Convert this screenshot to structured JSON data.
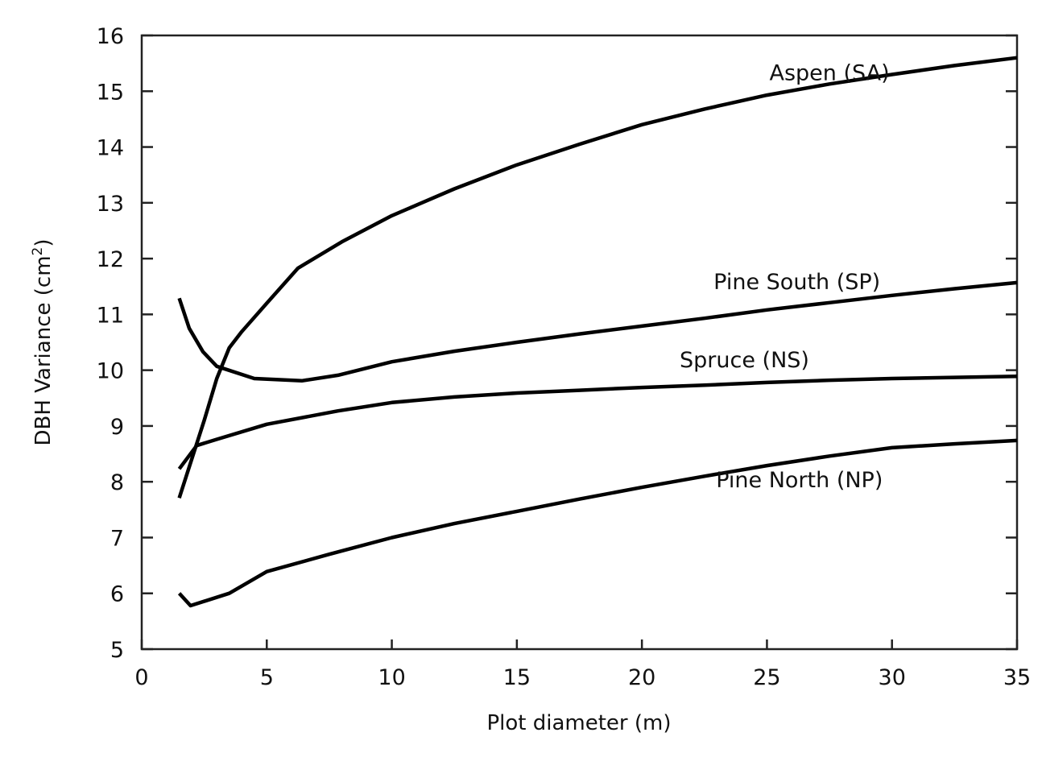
{
  "chart_data": {
    "type": "line",
    "title": "",
    "xlabel": "Plot diameter (m)",
    "ylabel": "DBH Variance (cm",
    "ylabel_superscript": "2",
    "ylabel_suffix": ")",
    "xlim": [
      0,
      35
    ],
    "ylim": [
      5,
      16
    ],
    "xticks": [
      "0",
      "5",
      "10",
      "15",
      "20",
      "25",
      "30",
      "35"
    ],
    "yticks": [
      "5",
      "6",
      "7",
      "8",
      "9",
      "10",
      "11",
      "12",
      "13",
      "14",
      "15",
      "16"
    ],
    "grid": false,
    "legend": "inline labels",
    "line_color": "#000000",
    "series": [
      {
        "name": "Aspen (SA)",
        "label_at": [
          27.5,
          15.2
        ],
        "x": [
          1.5,
          2.5,
          3.0,
          3.5,
          4.0,
          5.0,
          6.25,
          8.0,
          10.0,
          12.5,
          15.0,
          17.5,
          20.0,
          22.5,
          25.0,
          27.5,
          30.0,
          32.5,
          35.0
        ],
        "y": [
          7.71,
          9.1,
          9.85,
          10.4,
          10.69,
          11.2,
          11.83,
          12.3,
          12.77,
          13.25,
          13.68,
          14.05,
          14.4,
          14.68,
          14.93,
          15.13,
          15.3,
          15.46,
          15.6
        ]
      },
      {
        "name": "Pine South (SP)",
        "label_at": [
          26.2,
          11.45
        ],
        "x": [
          1.5,
          1.9,
          2.45,
          3.0,
          4.5,
          6.4,
          7.85,
          10.0,
          12.5,
          15.0,
          17.5,
          20.0,
          22.5,
          25.0,
          27.5,
          30.0,
          32.5,
          35.0
        ],
        "y": [
          11.29,
          10.75,
          10.33,
          10.07,
          9.85,
          9.81,
          9.91,
          10.15,
          10.34,
          10.5,
          10.65,
          10.79,
          10.93,
          11.08,
          11.21,
          11.34,
          11.46,
          11.57
        ]
      },
      {
        "name": "Spruce (NS)",
        "label_at": [
          24.1,
          10.05
        ],
        "x": [
          1.5,
          2.2,
          3.0,
          5.0,
          7.85,
          10.0,
          12.5,
          15.0,
          17.5,
          20.0,
          22.5,
          25.0,
          27.5,
          30.0,
          32.5,
          35.0
        ],
        "y": [
          8.23,
          8.65,
          8.76,
          9.03,
          9.27,
          9.42,
          9.52,
          9.59,
          9.64,
          9.69,
          9.73,
          9.78,
          9.82,
          9.85,
          9.87,
          9.89
        ]
      },
      {
        "name": "Pine North (NP)",
        "label_at": [
          26.3,
          7.9
        ],
        "x": [
          1.5,
          1.95,
          3.5,
          5.0,
          7.5,
          10.0,
          12.5,
          15.0,
          17.5,
          20.0,
          22.5,
          25.0,
          27.5,
          30.0,
          32.5,
          35.0
        ],
        "y": [
          6.0,
          5.78,
          6.0,
          6.39,
          6.7,
          7.0,
          7.25,
          7.47,
          7.69,
          7.9,
          8.1,
          8.29,
          8.46,
          8.61,
          8.68,
          8.74
        ]
      }
    ]
  }
}
